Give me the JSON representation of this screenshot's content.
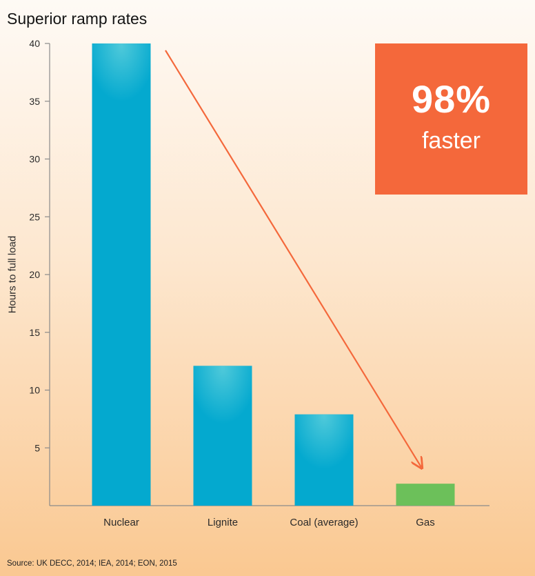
{
  "chart_data": {
    "type": "bar",
    "title": "Superior ramp rates",
    "ylabel": "Hours to full load",
    "xlabel": "",
    "categories": [
      "Nuclear",
      "Lignite",
      "Coal (average)",
      "Gas"
    ],
    "values": [
      40,
      12.1,
      7.9,
      1.9
    ],
    "ylim": [
      0,
      40
    ],
    "yticks": [
      5,
      10,
      15,
      20,
      25,
      30,
      35,
      40
    ],
    "bar_colors": [
      "#04a9cf",
      "#04a9cf",
      "#04a9cf",
      "#6cc05a"
    ],
    "arrow_color": "#f4683b",
    "grid": false
  },
  "callout": {
    "value": "98%",
    "label": "faster",
    "color": "#f4683b"
  },
  "source": "Source: UK DECC, 2014; IEA, 2014; EON, 2015"
}
